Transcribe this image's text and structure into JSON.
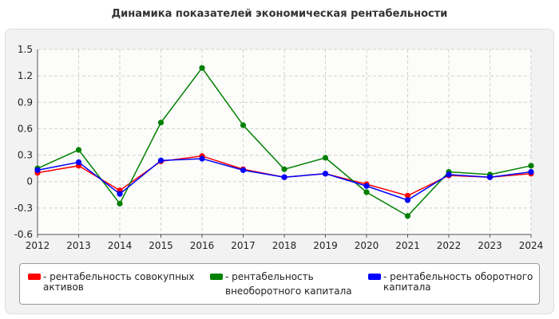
{
  "chart_data": {
    "type": "line",
    "title": "Динамика показателей экономическая рентабельности",
    "xlabel": "",
    "ylabel": "",
    "x": [
      "2012",
      "2013",
      "2014",
      "2015",
      "2016",
      "2017",
      "2018",
      "2019",
      "2020",
      "2021",
      "2022",
      "2023",
      "2024"
    ],
    "yticks": [
      "1.5",
      "1.2",
      "0.9",
      "0.6",
      "0.3",
      "0",
      "-0.3",
      "-0.6"
    ],
    "ylim": [
      -0.6,
      1.5
    ],
    "grid": true,
    "legend_position": "bottom",
    "series": [
      {
        "name": "рентабельность совокупных активов",
        "label_lines": [
          "- рентабельность совокупных",
          "активов"
        ],
        "color": "#ff0000",
        "values": [
          0.1,
          0.18,
          -0.1,
          0.23,
          0.29,
          0.14,
          0.05,
          0.09,
          -0.03,
          -0.16,
          0.07,
          0.05,
          0.09
        ]
      },
      {
        "name": "рентабельность внеоборотного капитала",
        "label_lines": [
          "- рентабельность",
          "внеоборотного капитала"
        ],
        "color": "#008000",
        "values": [
          0.15,
          0.36,
          -0.25,
          0.67,
          1.29,
          0.64,
          0.14,
          0.27,
          -0.12,
          -0.39,
          0.11,
          0.08,
          0.18
        ]
      },
      {
        "name": "рентабельность оборотного капитала",
        "label_lines": [
          "- рентабельность оборотного",
          "капитала"
        ],
        "color": "#0000ff",
        "values": [
          0.13,
          0.22,
          -0.14,
          0.24,
          0.26,
          0.13,
          0.05,
          0.09,
          -0.05,
          -0.21,
          0.08,
          0.05,
          0.11
        ]
      }
    ]
  }
}
